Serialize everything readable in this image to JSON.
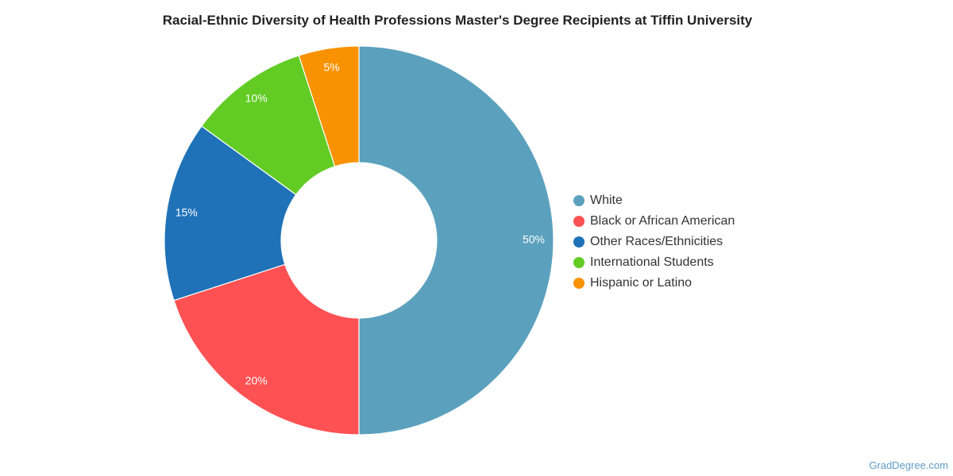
{
  "chart_data": {
    "type": "pie",
    "variant": "donut",
    "title": "Racial-Ethnic Diversity of Health Professions Master's Degree Recipients at Tiffin University",
    "slices": [
      {
        "name": "White",
        "value": 50,
        "label": "50%",
        "color": "#5ba1bd"
      },
      {
        "name": "Black or African American",
        "value": 20,
        "label": "20%",
        "color": "#fe5153"
      },
      {
        "name": "Other Races/Ethnicities",
        "value": 15,
        "label": "15%",
        "color": "#1f72b8"
      },
      {
        "name": "International Students",
        "value": 10,
        "label": "10%",
        "color": "#62cc24"
      },
      {
        "name": "Hispanic or Latino",
        "value": 5,
        "label": "5%",
        "color": "#f99200"
      }
    ],
    "legend_position": "right"
  },
  "footer": {
    "credit": "GradDegree.com"
  }
}
